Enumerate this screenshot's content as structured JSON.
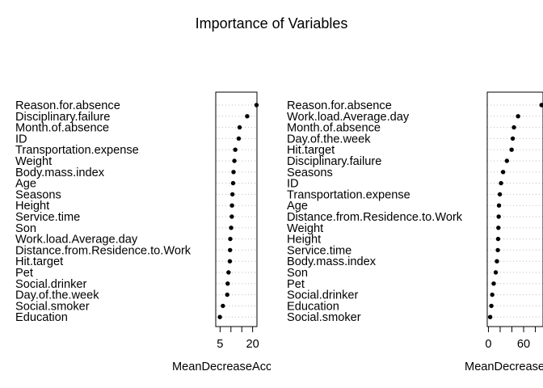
{
  "chart_data": [
    {
      "type": "scatter",
      "subtype": "dotchart",
      "title": "Importance of Variables",
      "xlabel": "MeanDecreaseAccuracy",
      "ylabel": "",
      "xlim": [
        3,
        22
      ],
      "xticks": [
        5,
        10,
        15,
        20
      ],
      "xtick_labels": [
        "5",
        "",
        "",
        "20"
      ],
      "grid": "dotted horizontal lines",
      "categories": [
        "Reason.for.absence",
        "Disciplinary.failure",
        "Month.of.absence",
        "ID",
        "Transportation.expense",
        "Weight",
        "Body.mass.index",
        "Age",
        "Seasons",
        "Height",
        "Service.time",
        "Son",
        "Work.load.Average.day",
        "Distance.from.Residence.to.Work",
        "Hit.target",
        "Pet",
        "Social.drinker",
        "Day.of.the.week",
        "Social.smoker",
        "Education"
      ],
      "values": [
        21.8,
        17.5,
        14.0,
        13.6,
        12.0,
        11.6,
        11.2,
        11.0,
        10.7,
        10.5,
        10.4,
        10.1,
        9.7,
        9.6,
        9.5,
        8.9,
        8.5,
        8.3,
        6.3,
        4.9
      ]
    },
    {
      "type": "scatter",
      "subtype": "dotchart",
      "title": "Importance of Variables",
      "xlabel": "MeanDecreaseGini",
      "ylabel": "",
      "xlim": [
        -2,
        93
      ],
      "xticks": [
        0,
        20,
        40,
        60,
        80
      ],
      "xtick_labels": [
        "0",
        "",
        "",
        "60",
        ""
      ],
      "grid": "dotted horizontal lines",
      "categories": [
        "Reason.for.absence",
        "Work.load.Average.day",
        "Month.of.absence",
        "Day.of.the.week",
        "Hit.target",
        "Disciplinary.failure",
        "Seasons",
        "ID",
        "Transportation.expense",
        "Age",
        "Distance.from.Residence.to.Work",
        "Weight",
        "Height",
        "Service.time",
        "Body.mass.index",
        "Son",
        "Pet",
        "Social.drinker",
        "Education",
        "Social.smoker"
      ],
      "values": [
        90.5,
        50.5,
        43.5,
        41.5,
        39.5,
        31.5,
        25.0,
        21.5,
        19.5,
        18.0,
        17.5,
        17.0,
        16.5,
        16.0,
        14.5,
        12.5,
        9.0,
        6.5,
        5.0,
        3.0
      ]
    }
  ]
}
